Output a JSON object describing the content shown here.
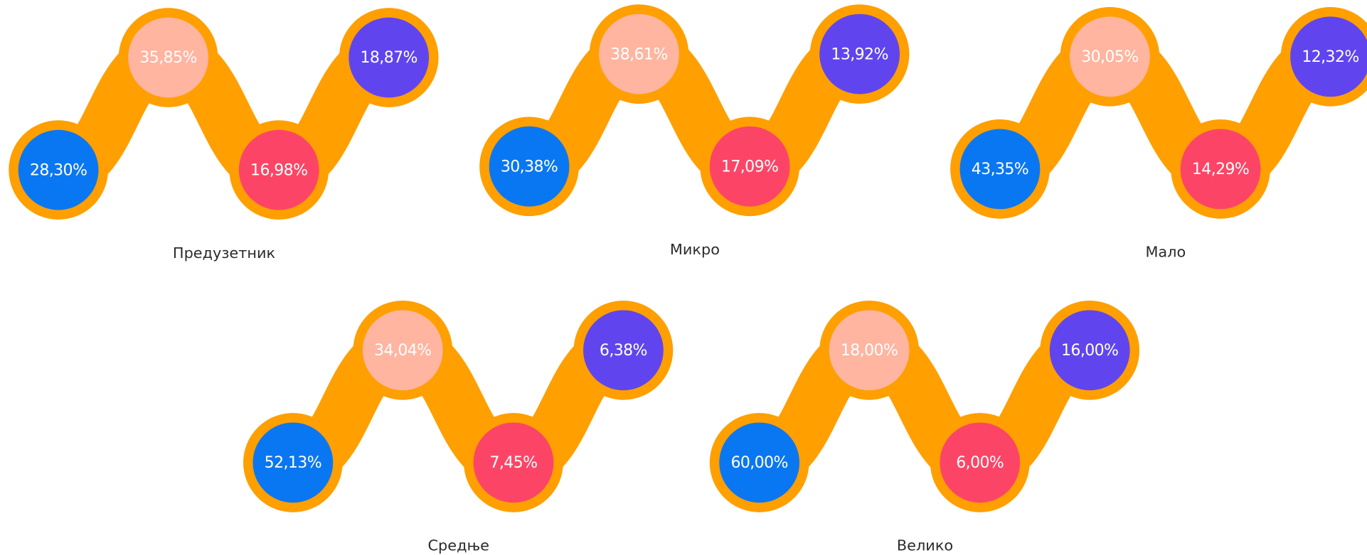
{
  "groups": [
    {
      "label": "Предузетник",
      "items": [
        "28,30%",
        "35,85%",
        "16,98%",
        "18,87%"
      ]
    },
    {
      "label": "Микро",
      "items": [
        "30,38%",
        "38,61%",
        "17,09%",
        "13,92%"
      ]
    },
    {
      "label": "Мало",
      "items": [
        "43,35%",
        "30,05%",
        "14,29%",
        "12,32%"
      ]
    },
    {
      "label": "Средње",
      "items": [
        "52,13%",
        "34,04%",
        "7,45%",
        "6,38%"
      ]
    },
    {
      "label": "Велико",
      "items": [
        "60,00%",
        "18,00%",
        "6,00%",
        "16,00%"
      ]
    }
  ]
}
